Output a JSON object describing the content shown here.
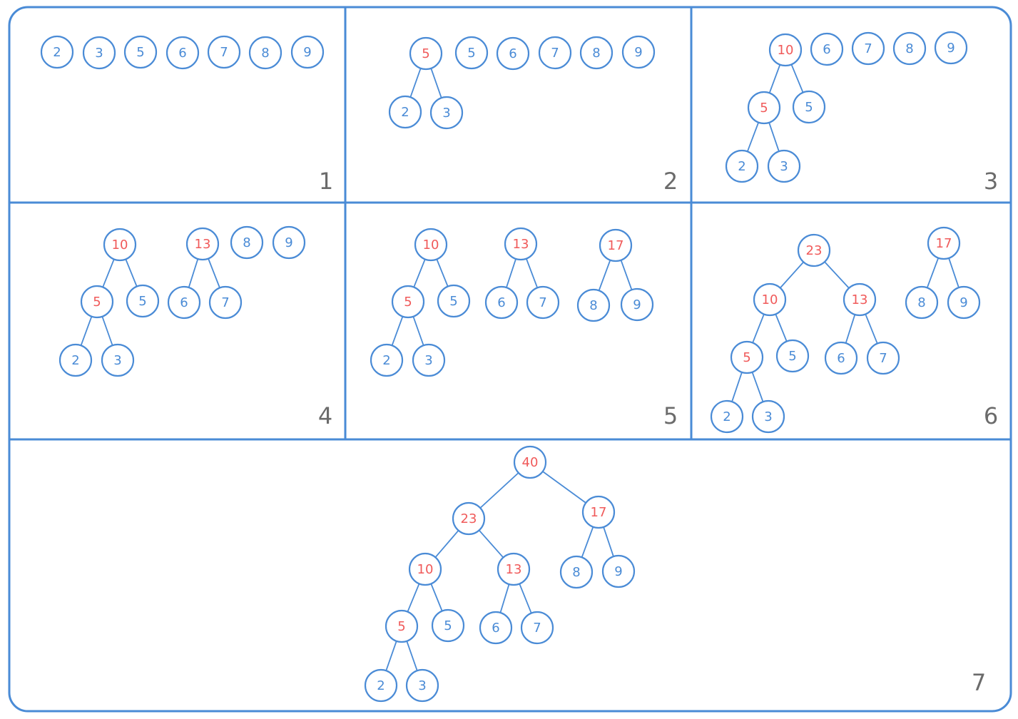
{
  "colors": {
    "stroke": "#4a8bd6",
    "leaf_text": "#4a8bd6",
    "merged_text": "#f05a5a",
    "step_label": "#6b6b6b"
  },
  "steps": [
    {
      "label": "1",
      "nodes": [
        {
          "id": "a",
          "value": "2",
          "kind": "leaf"
        },
        {
          "id": "b",
          "value": "3",
          "kind": "leaf"
        },
        {
          "id": "c",
          "value": "5",
          "kind": "leaf"
        },
        {
          "id": "d",
          "value": "6",
          "kind": "leaf"
        },
        {
          "id": "e",
          "value": "7",
          "kind": "leaf"
        },
        {
          "id": "f",
          "value": "8",
          "kind": "leaf"
        },
        {
          "id": "g",
          "value": "9",
          "kind": "leaf"
        }
      ],
      "edges": []
    },
    {
      "label": "2",
      "nodes": [
        {
          "id": "r",
          "value": "5",
          "kind": "merged"
        },
        {
          "id": "a",
          "value": "2",
          "kind": "leaf"
        },
        {
          "id": "b",
          "value": "3",
          "kind": "leaf"
        },
        {
          "id": "c",
          "value": "5",
          "kind": "leaf"
        },
        {
          "id": "d",
          "value": "6",
          "kind": "leaf"
        },
        {
          "id": "e",
          "value": "7",
          "kind": "leaf"
        },
        {
          "id": "f",
          "value": "8",
          "kind": "leaf"
        },
        {
          "id": "g",
          "value": "9",
          "kind": "leaf"
        }
      ],
      "edges": [
        [
          "r",
          "a"
        ],
        [
          "r",
          "b"
        ]
      ]
    },
    {
      "label": "3",
      "nodes": [
        {
          "id": "t",
          "value": "10",
          "kind": "merged"
        },
        {
          "id": "r",
          "value": "5",
          "kind": "merged"
        },
        {
          "id": "c",
          "value": "5",
          "kind": "leaf"
        },
        {
          "id": "a",
          "value": "2",
          "kind": "leaf"
        },
        {
          "id": "b",
          "value": "3",
          "kind": "leaf"
        },
        {
          "id": "d",
          "value": "6",
          "kind": "leaf"
        },
        {
          "id": "e",
          "value": "7",
          "kind": "leaf"
        },
        {
          "id": "f",
          "value": "8",
          "kind": "leaf"
        },
        {
          "id": "g",
          "value": "9",
          "kind": "leaf"
        }
      ],
      "edges": [
        [
          "t",
          "r"
        ],
        [
          "t",
          "c"
        ],
        [
          "r",
          "a"
        ],
        [
          "r",
          "b"
        ]
      ]
    },
    {
      "label": "4",
      "nodes": [
        {
          "id": "t",
          "value": "10",
          "kind": "merged"
        },
        {
          "id": "u",
          "value": "13",
          "kind": "merged"
        },
        {
          "id": "r",
          "value": "5",
          "kind": "merged"
        },
        {
          "id": "c",
          "value": "5",
          "kind": "leaf"
        },
        {
          "id": "d",
          "value": "6",
          "kind": "leaf"
        },
        {
          "id": "e",
          "value": "7",
          "kind": "leaf"
        },
        {
          "id": "a",
          "value": "2",
          "kind": "leaf"
        },
        {
          "id": "b",
          "value": "3",
          "kind": "leaf"
        },
        {
          "id": "f",
          "value": "8",
          "kind": "leaf"
        },
        {
          "id": "g",
          "value": "9",
          "kind": "leaf"
        }
      ],
      "edges": [
        [
          "t",
          "r"
        ],
        [
          "t",
          "c"
        ],
        [
          "r",
          "a"
        ],
        [
          "r",
          "b"
        ],
        [
          "u",
          "d"
        ],
        [
          "u",
          "e"
        ]
      ]
    },
    {
      "label": "5",
      "nodes": [
        {
          "id": "t",
          "value": "10",
          "kind": "merged"
        },
        {
          "id": "u",
          "value": "13",
          "kind": "merged"
        },
        {
          "id": "v",
          "value": "17",
          "kind": "merged"
        },
        {
          "id": "r",
          "value": "5",
          "kind": "merged"
        },
        {
          "id": "c",
          "value": "5",
          "kind": "leaf"
        },
        {
          "id": "d",
          "value": "6",
          "kind": "leaf"
        },
        {
          "id": "e",
          "value": "7",
          "kind": "leaf"
        },
        {
          "id": "f",
          "value": "8",
          "kind": "leaf"
        },
        {
          "id": "g",
          "value": "9",
          "kind": "leaf"
        },
        {
          "id": "a",
          "value": "2",
          "kind": "leaf"
        },
        {
          "id": "b",
          "value": "3",
          "kind": "leaf"
        }
      ],
      "edges": [
        [
          "t",
          "r"
        ],
        [
          "t",
          "c"
        ],
        [
          "r",
          "a"
        ],
        [
          "r",
          "b"
        ],
        [
          "u",
          "d"
        ],
        [
          "u",
          "e"
        ],
        [
          "v",
          "f"
        ],
        [
          "v",
          "g"
        ]
      ]
    },
    {
      "label": "6",
      "nodes": [
        {
          "id": "w",
          "value": "23",
          "kind": "merged"
        },
        {
          "id": "v",
          "value": "17",
          "kind": "merged"
        },
        {
          "id": "t",
          "value": "10",
          "kind": "merged"
        },
        {
          "id": "u",
          "value": "13",
          "kind": "merged"
        },
        {
          "id": "f",
          "value": "8",
          "kind": "leaf"
        },
        {
          "id": "g",
          "value": "9",
          "kind": "leaf"
        },
        {
          "id": "r",
          "value": "5",
          "kind": "merged"
        },
        {
          "id": "c",
          "value": "5",
          "kind": "leaf"
        },
        {
          "id": "d",
          "value": "6",
          "kind": "leaf"
        },
        {
          "id": "e",
          "value": "7",
          "kind": "leaf"
        },
        {
          "id": "a",
          "value": "2",
          "kind": "leaf"
        },
        {
          "id": "b",
          "value": "3",
          "kind": "leaf"
        }
      ],
      "edges": [
        [
          "w",
          "t"
        ],
        [
          "w",
          "u"
        ],
        [
          "t",
          "r"
        ],
        [
          "t",
          "c"
        ],
        [
          "r",
          "a"
        ],
        [
          "r",
          "b"
        ],
        [
          "u",
          "d"
        ],
        [
          "u",
          "e"
        ],
        [
          "v",
          "f"
        ],
        [
          "v",
          "g"
        ]
      ]
    },
    {
      "label": "7",
      "nodes": [
        {
          "id": "x",
          "value": "40",
          "kind": "merged"
        },
        {
          "id": "w",
          "value": "23",
          "kind": "merged"
        },
        {
          "id": "v",
          "value": "17",
          "kind": "merged"
        },
        {
          "id": "t",
          "value": "10",
          "kind": "merged"
        },
        {
          "id": "u",
          "value": "13",
          "kind": "merged"
        },
        {
          "id": "f",
          "value": "8",
          "kind": "leaf"
        },
        {
          "id": "g",
          "value": "9",
          "kind": "leaf"
        },
        {
          "id": "r",
          "value": "5",
          "kind": "merged"
        },
        {
          "id": "c",
          "value": "5",
          "kind": "leaf"
        },
        {
          "id": "d",
          "value": "6",
          "kind": "leaf"
        },
        {
          "id": "e",
          "value": "7",
          "kind": "leaf"
        },
        {
          "id": "a",
          "value": "2",
          "kind": "leaf"
        },
        {
          "id": "b",
          "value": "3",
          "kind": "leaf"
        }
      ],
      "edges": [
        [
          "x",
          "w"
        ],
        [
          "x",
          "v"
        ],
        [
          "w",
          "t"
        ],
        [
          "w",
          "u"
        ],
        [
          "t",
          "r"
        ],
        [
          "t",
          "c"
        ],
        [
          "r",
          "a"
        ],
        [
          "r",
          "b"
        ],
        [
          "u",
          "d"
        ],
        [
          "u",
          "e"
        ],
        [
          "v",
          "f"
        ],
        [
          "v",
          "g"
        ]
      ]
    }
  ]
}
